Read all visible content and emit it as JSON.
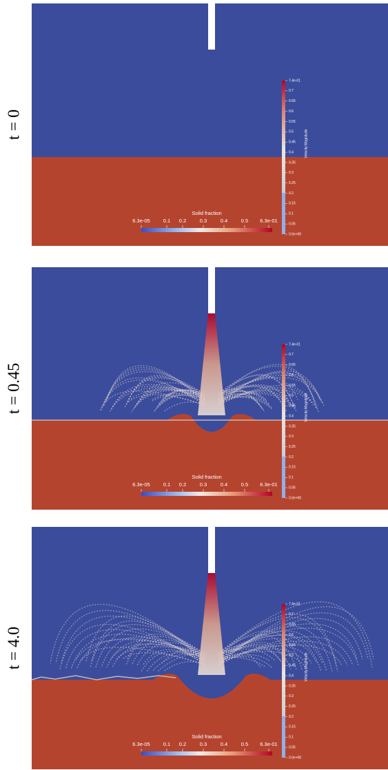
{
  "panels": [
    {
      "label": "t = 0"
    },
    {
      "label": "t = 0.45"
    },
    {
      "label": "t = 4.0"
    }
  ],
  "solid_fraction_colorbar": {
    "title": "Solid fraction",
    "ticks": [
      "6.3e-05",
      "0.1",
      "0.2",
      "0.3",
      "0.4",
      "0.5",
      "6.3e-01"
    ]
  },
  "velocity_colorbar": {
    "title": "Velocity Magnitude",
    "ticks": [
      "7.4e-01",
      "0.7",
      "0.65",
      "0.6",
      "0.55",
      "0.5",
      "0.45",
      "0.4",
      "0.35",
      "0.3",
      "0.25",
      "0.2",
      "0.15",
      "0.1",
      "0.05",
      "0.0e+00"
    ]
  }
}
